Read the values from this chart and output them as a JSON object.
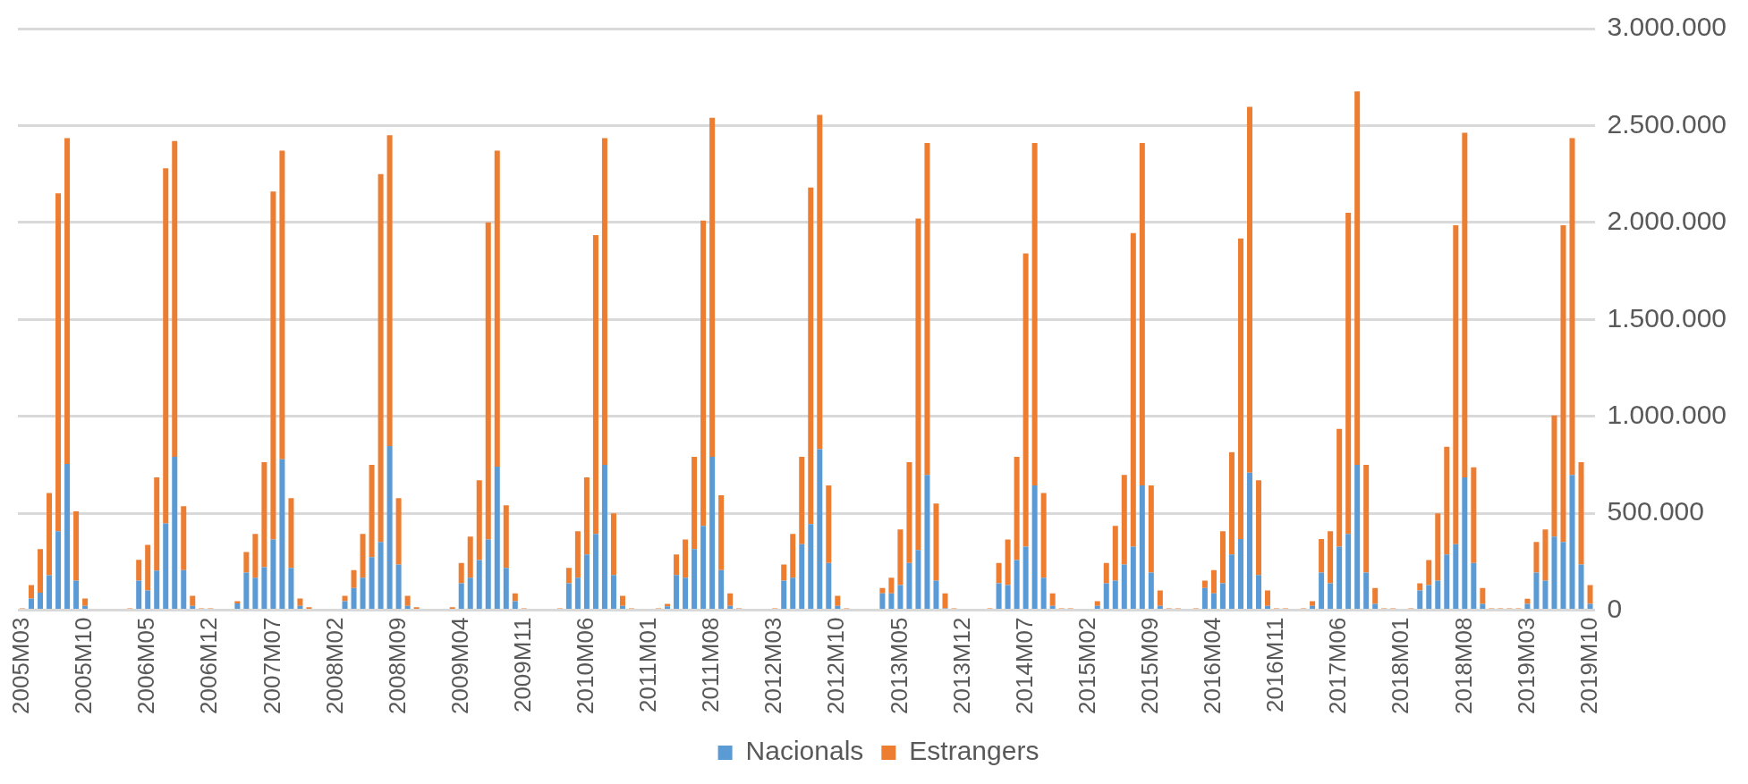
{
  "chart_data": {
    "type": "bar",
    "stacked": true,
    "grid": "y",
    "legend": "bottom",
    "ylim": [
      0,
      3000000
    ],
    "yticks": [
      0,
      {
        "value": 500000,
        "label": "500.000"
      },
      {
        "value": 1000000,
        "label": "1.000.000"
      },
      {
        "value": 1500000,
        "label": "1.500.000"
      },
      {
        "value": 2000000,
        "label": "2.000.000"
      },
      {
        "value": 2500000,
        "label": "2.500.000"
      },
      {
        "value": 3000000,
        "label": "3.000.000"
      }
    ],
    "categories": [
      "2005M03",
      null,
      null,
      null,
      null,
      null,
      null,
      "2005M10",
      null,
      null,
      null,
      null,
      null,
      null,
      "2006M05",
      null,
      null,
      null,
      null,
      null,
      null,
      "2006M12",
      null,
      null,
      null,
      null,
      null,
      null,
      "2007M07",
      null,
      null,
      null,
      null,
      null,
      null,
      "2008M02",
      null,
      null,
      null,
      null,
      null,
      null,
      "2008M09",
      null,
      null,
      null,
      null,
      null,
      null,
      "2009M04",
      null,
      null,
      null,
      null,
      null,
      null,
      "2009M11",
      null,
      null,
      null,
      null,
      null,
      null,
      "2010M06",
      null,
      null,
      null,
      null,
      null,
      null,
      "2011M01",
      null,
      null,
      null,
      null,
      null,
      null,
      "2011M08",
      null,
      null,
      null,
      null,
      null,
      null,
      "2012M03",
      null,
      null,
      null,
      null,
      null,
      null,
      "2012M10",
      null,
      null,
      null,
      null,
      null,
      null,
      "2013M05",
      null,
      null,
      null,
      null,
      null,
      null,
      "2013M12",
      null,
      null,
      null,
      null,
      null,
      null,
      "2014M07",
      null,
      null,
      null,
      null,
      null,
      null,
      "2015M02",
      null,
      null,
      null,
      null,
      null,
      null,
      "2015M09",
      null,
      null,
      null,
      null,
      null,
      null,
      "2016M04",
      null,
      null,
      null,
      null,
      null,
      null,
      "2016M11",
      null,
      null,
      null,
      null,
      null,
      null,
      "2017M06",
      null,
      null,
      null,
      null,
      null,
      null,
      "2018M01",
      null,
      null,
      null,
      null,
      null,
      null,
      "2018M08",
      null,
      null,
      null,
      null,
      null,
      null,
      "2019M03",
      null,
      null,
      null,
      null,
      null,
      null,
      "2019M10"
    ],
    "series": [
      {
        "name": "Nacionals",
        "color": "#5b9bd5",
        "values": [
          0,
          60000,
          90000,
          180000,
          407000,
          754000,
          152000,
          22000,
          0,
          0,
          0,
          0,
          0,
          152000,
          102000,
          204000,
          448000,
          791000,
          207000,
          22000,
          0,
          0,
          0,
          0,
          35000,
          194000,
          167000,
          222000,
          365000,
          778000,
          218000,
          22000,
          0,
          0,
          0,
          0,
          46000,
          115000,
          167000,
          274000,
          352000,
          846000,
          235000,
          22000,
          0,
          0,
          0,
          0,
          0,
          139000,
          167000,
          259000,
          365000,
          741000,
          218000,
          46000,
          0,
          0,
          0,
          0,
          0,
          139000,
          167000,
          287000,
          393000,
          750000,
          181000,
          22000,
          0,
          0,
          0,
          0,
          20000,
          181000,
          167000,
          315000,
          435000,
          791000,
          207000,
          22000,
          0,
          0,
          0,
          0,
          0,
          152000,
          167000,
          341000,
          444000,
          830000,
          244000,
          22000,
          0,
          0,
          0,
          0,
          87000,
          87000,
          130000,
          244000,
          311000,
          698000,
          152000,
          10000,
          0,
          0,
          0,
          0,
          0,
          139000,
          130000,
          259000,
          328000,
          644000,
          167000,
          22000,
          0,
          0,
          0,
          0,
          22000,
          139000,
          152000,
          235000,
          328000,
          644000,
          194000,
          22000,
          0,
          0,
          0,
          0,
          115000,
          87000,
          139000,
          287000,
          367000,
          709000,
          181000,
          22000,
          0,
          0,
          0,
          0,
          22000,
          194000,
          139000,
          328000,
          393000,
          750000,
          194000,
          33000,
          0,
          0,
          0,
          0,
          102000,
          130000,
          152000,
          287000,
          341000,
          685000,
          244000,
          33000,
          0,
          0,
          0,
          0,
          33000,
          194000,
          152000,
          380000,
          352000,
          698000,
          235000,
          33000
        ]
      },
      {
        "name": "Estrangers",
        "color": "#ed7d31",
        "values": [
          10000,
          70000,
          225000,
          425000,
          1743000,
          1681000,
          358000,
          38000,
          0,
          0,
          0,
          0,
          10000,
          108000,
          235000,
          481000,
          1832000,
          1629000,
          330000,
          52000,
          10000,
          10000,
          0,
          0,
          11000,
          106000,
          226000,
          541000,
          1795000,
          1592000,
          360000,
          38000,
          15000,
          0,
          0,
          0,
          28000,
          92000,
          226000,
          476000,
          1898000,
          1604000,
          343000,
          52000,
          15000,
          0,
          0,
          0,
          15000,
          105000,
          213000,
          411000,
          1635000,
          1629000,
          323000,
          41000,
          10000,
          0,
          0,
          0,
          10000,
          79000,
          240000,
          398000,
          1542000,
          1685000,
          319000,
          52000,
          10000,
          0,
          0,
          10000,
          13000,
          106000,
          198000,
          476000,
          1575000,
          1749000,
          386000,
          65000,
          10000,
          0,
          0,
          0,
          10000,
          83000,
          226000,
          450000,
          1736000,
          1725000,
          400000,
          52000,
          10000,
          0,
          0,
          0,
          28000,
          80000,
          287000,
          519000,
          1709000,
          1712000,
          398000,
          77000,
          10000,
          0,
          0,
          0,
          10000,
          105000,
          235000,
          532000,
          1512000,
          1766000,
          438000,
          65000,
          10000,
          10000,
          0,
          0,
          24000,
          105000,
          283000,
          463000,
          1617000,
          1766000,
          450000,
          80000,
          10000,
          10000,
          0,
          10000,
          37000,
          120000,
          268000,
          528000,
          1550000,
          1888000,
          489000,
          80000,
          10000,
          10000,
          0,
          10000,
          24000,
          173000,
          268000,
          607000,
          1657000,
          1926000,
          556000,
          82000,
          10000,
          10000,
          0,
          10000,
          37000,
          129000,
          348000,
          556000,
          1644000,
          1778000,
          493000,
          82000,
          10000,
          10000,
          10000,
          10000,
          26000,
          158000,
          265000,
          624000,
          1633000,
          1737000,
          528000,
          97000
        ]
      }
    ]
  }
}
